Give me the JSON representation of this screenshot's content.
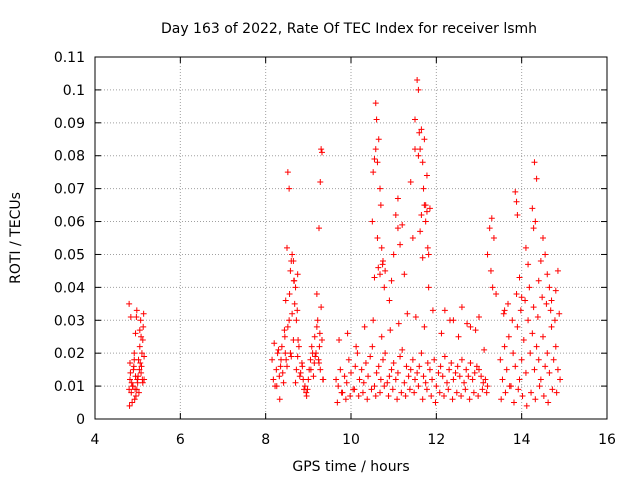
{
  "chart_data": {
    "type": "scatter",
    "title": "Day 163 of 2022, Rate Of TEC Index for receiver lsmh",
    "xlabel": "GPS time / hours",
    "ylabel": "ROTI / TECUs",
    "xlim": [
      4,
      16
    ],
    "ylim": [
      0,
      0.11
    ],
    "xticks": [
      "4",
      "6",
      "8",
      "10",
      "12",
      "14",
      "16"
    ],
    "yticks": [
      "0",
      "0.01",
      "0.02",
      "0.03",
      "0.04",
      "0.05",
      "0.06",
      "0.07",
      "0.08",
      "0.09",
      "0.1",
      "0.11"
    ],
    "grid": true,
    "marker": "+",
    "colors": {
      "points": "#ff0000",
      "grid": "#a0a0a0",
      "axes": "#000000"
    },
    "series": [
      {
        "x": [
          4.8,
          4.82,
          4.85,
          4.88,
          4.9,
          4.93,
          4.95,
          4.98,
          5.0,
          5.02,
          5.05,
          5.08,
          5.1,
          5.12,
          5.15,
          4.81,
          4.86,
          4.91,
          4.96,
          5.01,
          5.06,
          5.11,
          4.84,
          4.94,
          5.04,
          5.14,
          4.87,
          4.97,
          5.07,
          4.83,
          4.92,
          5.03,
          5.13,
          4.89,
          4.99,
          5.09,
          4.95,
          5.05,
          4.82,
          5.15,
          4.8,
          4.92,
          5.08,
          5.12,
          4.98,
          8.15,
          8.18,
          8.22,
          8.25,
          8.28,
          8.32,
          8.35,
          8.38,
          8.42,
          8.45,
          8.48,
          8.52,
          8.55,
          8.58,
          8.62,
          8.65,
          8.68,
          8.72,
          8.75,
          8.78,
          8.82,
          8.85,
          8.88,
          8.92,
          8.95,
          8.98,
          9.02,
          9.05,
          9.08,
          9.12,
          9.15,
          9.18,
          9.22,
          9.25,
          9.28,
          9.32,
          9.35,
          8.2,
          8.3,
          8.4,
          8.5,
          8.6,
          8.7,
          8.8,
          8.9,
          9.0,
          9.1,
          9.2,
          9.3,
          8.26,
          8.36,
          8.46,
          8.56,
          8.66,
          8.76,
          8.86,
          8.96,
          9.06,
          9.16,
          9.26,
          8.5,
          8.52,
          8.55,
          8.58,
          8.62,
          8.65,
          8.7,
          8.72,
          8.75,
          9.2,
          9.25,
          9.28,
          9.3,
          9.32,
          8.33,
          8.44,
          8.6,
          8.74,
          9.14,
          9.34,
          9.27,
          9.24,
          8.47,
          8.67,
          9.65,
          9.7,
          9.75,
          9.8,
          9.85,
          9.9,
          9.95,
          10.0,
          10.05,
          10.1,
          10.15,
          10.2,
          10.25,
          10.3,
          10.35,
          10.4,
          10.45,
          10.5,
          10.55,
          10.6,
          10.65,
          10.7,
          10.75,
          10.8,
          10.85,
          10.9,
          10.95,
          11.0,
          11.05,
          11.1,
          11.15,
          11.2,
          11.25,
          11.3,
          11.35,
          11.4,
          11.45,
          11.5,
          11.55,
          11.6,
          11.65,
          11.7,
          11.75,
          11.8,
          11.85,
          11.9,
          11.95,
          12.0,
          12.05,
          12.1,
          12.15,
          12.2,
          12.25,
          12.3,
          12.35,
          12.4,
          12.45,
          12.5,
          12.55,
          12.6,
          12.65,
          12.7,
          12.75,
          12.8,
          12.85,
          12.9,
          12.95,
          13.0,
          13.05,
          13.1,
          13.15,
          13.2,
          9.68,
          9.78,
          9.88,
          9.98,
          10.08,
          10.18,
          10.28,
          10.38,
          10.48,
          10.58,
          10.68,
          10.78,
          10.88,
          10.98,
          11.08,
          11.18,
          11.28,
          11.38,
          11.48,
          11.58,
          11.68,
          11.78,
          11.88,
          11.98,
          12.08,
          12.18,
          12.28,
          12.38,
          12.48,
          12.58,
          12.68,
          12.78,
          12.88,
          12.98,
          13.08,
          13.18,
          9.72,
          9.92,
          10.12,
          10.32,
          10.52,
          10.72,
          10.92,
          11.12,
          11.32,
          11.52,
          11.72,
          11.92,
          12.12,
          12.32,
          12.52,
          12.72,
          12.92,
          13.12,
          10.5,
          10.52,
          10.55,
          10.58,
          10.6,
          10.62,
          10.65,
          10.68,
          10.7,
          10.72,
          10.75,
          10.78,
          10.8,
          11.0,
          11.05,
          11.1,
          11.15,
          11.2,
          11.25,
          11.5,
          11.55,
          11.58,
          11.6,
          11.62,
          11.65,
          11.68,
          11.7,
          11.72,
          11.75,
          11.78,
          11.8,
          11.82,
          11.85,
          11.4,
          11.45,
          10.9,
          10.95,
          12.2,
          12.4,
          12.6,
          12.8,
          13.0,
          10.55,
          10.62,
          10.68,
          11.58,
          11.62,
          11.65,
          11.72,
          11.78,
          11.82,
          10.74,
          11.1,
          11.5,
          10.58,
          10.64,
          11.75,
          11.68,
          13.5,
          13.55,
          13.6,
          13.65,
          13.7,
          13.75,
          13.8,
          13.85,
          13.9,
          13.95,
          14.0,
          14.05,
          14.1,
          14.15,
          14.2,
          14.25,
          14.3,
          14.35,
          14.4,
          14.45,
          14.5,
          14.55,
          14.6,
          14.65,
          14.7,
          14.75,
          14.8,
          14.85,
          14.9,
          13.52,
          13.62,
          13.72,
          13.82,
          13.92,
          14.02,
          14.12,
          14.22,
          14.32,
          14.42,
          14.52,
          14.62,
          14.72,
          14.82,
          13.58,
          13.68,
          13.78,
          13.88,
          13.98,
          14.08,
          14.18,
          14.28,
          14.38,
          14.48,
          14.58,
          14.68,
          14.78,
          14.88,
          13.25,
          13.3,
          13.35,
          13.2,
          13.28,
          13.32,
          13.4,
          13.85,
          13.9,
          13.88,
          14.3,
          14.35,
          14.25,
          14.5,
          14.55,
          14.45,
          14.6,
          14.4,
          14.65,
          14.8,
          14.85,
          14.7,
          14.1,
          14.15,
          13.6,
          13.95,
          14.0,
          14.32,
          14.28
        ],
        "y": [
          0.035,
          0.012,
          0.008,
          0.01,
          0.015,
          0.006,
          0.013,
          0.009,
          0.011,
          0.018,
          0.022,
          0.014,
          0.02,
          0.024,
          0.019,
          0.004,
          0.011,
          0.016,
          0.007,
          0.013,
          0.017,
          0.012,
          0.031,
          0.009,
          0.015,
          0.032,
          0.005,
          0.031,
          0.03,
          0.014,
          0.018,
          0.008,
          0.028,
          0.01,
          0.012,
          0.016,
          0.026,
          0.027,
          0.017,
          0.012,
          0.009,
          0.02,
          0.025,
          0.011,
          0.033,
          0.018,
          0.012,
          0.01,
          0.015,
          0.02,
          0.013,
          0.016,
          0.022,
          0.011,
          0.025,
          0.018,
          0.028,
          0.03,
          0.02,
          0.032,
          0.024,
          0.035,
          0.015,
          0.019,
          0.022,
          0.014,
          0.017,
          0.012,
          0.01,
          0.008,
          0.009,
          0.015,
          0.018,
          0.022,
          0.013,
          0.025,
          0.02,
          0.03,
          0.017,
          0.015,
          0.024,
          0.012,
          0.023,
          0.021,
          0.014,
          0.016,
          0.019,
          0.011,
          0.013,
          0.009,
          0.012,
          0.02,
          0.028,
          0.034,
          0.01,
          0.018,
          0.02,
          0.038,
          0.042,
          0.024,
          0.016,
          0.007,
          0.015,
          0.019,
          0.022,
          0.052,
          0.075,
          0.07,
          0.045,
          0.05,
          0.048,
          0.04,
          0.03,
          0.044,
          0.038,
          0.058,
          0.072,
          0.082,
          0.081,
          0.006,
          0.027,
          0.048,
          0.033,
          0.017,
          0.012,
          0.026,
          0.018,
          0.036,
          0.042,
          0.012,
          0.01,
          0.015,
          0.008,
          0.013,
          0.011,
          0.018,
          0.014,
          0.009,
          0.016,
          0.02,
          0.012,
          0.015,
          0.011,
          0.017,
          0.013,
          0.019,
          0.022,
          0.01,
          0.014,
          0.016,
          0.012,
          0.018,
          0.02,
          0.011,
          0.013,
          0.015,
          0.017,
          0.012,
          0.014,
          0.019,
          0.021,
          0.011,
          0.016,
          0.013,
          0.015,
          0.018,
          0.012,
          0.014,
          0.016,
          0.02,
          0.013,
          0.011,
          0.017,
          0.015,
          0.012,
          0.018,
          0.01,
          0.014,
          0.016,
          0.013,
          0.019,
          0.011,
          0.015,
          0.017,
          0.012,
          0.014,
          0.016,
          0.013,
          0.018,
          0.011,
          0.015,
          0.013,
          0.017,
          0.012,
          0.014,
          0.016,
          0.015,
          0.013,
          0.011,
          0.012,
          0.01,
          0.005,
          0.008,
          0.006,
          0.007,
          0.009,
          0.007,
          0.008,
          0.006,
          0.009,
          0.007,
          0.008,
          0.01,
          0.007,
          0.009,
          0.006,
          0.008,
          0.007,
          0.009,
          0.008,
          0.01,
          0.006,
          0.009,
          0.007,
          0.005,
          0.008,
          0.007,
          0.009,
          0.006,
          0.008,
          0.007,
          0.009,
          0.006,
          0.008,
          0.007,
          0.009,
          0.008,
          0.024,
          0.026,
          0.022,
          0.028,
          0.03,
          0.025,
          0.027,
          0.029,
          0.032,
          0.031,
          0.028,
          0.033,
          0.026,
          0.03,
          0.025,
          0.029,
          0.027,
          0.021,
          0.06,
          0.075,
          0.079,
          0.096,
          0.091,
          0.078,
          0.085,
          0.07,
          0.065,
          0.052,
          0.048,
          0.04,
          0.045,
          0.05,
          0.062,
          0.067,
          0.053,
          0.059,
          0.044,
          0.091,
          0.103,
          0.1,
          0.087,
          0.082,
          0.088,
          0.078,
          0.07,
          0.065,
          0.06,
          0.074,
          0.052,
          0.05,
          0.064,
          0.072,
          0.055,
          0.036,
          0.042,
          0.033,
          0.03,
          0.034,
          0.028,
          0.031,
          0.043,
          0.055,
          0.044,
          0.08,
          0.057,
          0.062,
          0.085,
          0.063,
          0.04,
          0.047,
          0.058,
          0.082,
          0.082,
          0.046,
          0.065,
          0.049,
          0.018,
          0.012,
          0.022,
          0.015,
          0.025,
          0.01,
          0.02,
          0.016,
          0.028,
          0.012,
          0.018,
          0.024,
          0.014,
          0.03,
          0.02,
          0.026,
          0.015,
          0.022,
          0.018,
          0.012,
          0.025,
          0.016,
          0.02,
          0.014,
          0.028,
          0.018,
          0.022,
          0.015,
          0.012,
          0.006,
          0.008,
          0.01,
          0.005,
          0.009,
          0.007,
          0.004,
          0.008,
          0.006,
          0.01,
          0.007,
          0.005,
          0.009,
          0.008,
          0.032,
          0.035,
          0.03,
          0.038,
          0.033,
          0.036,
          0.04,
          0.034,
          0.031,
          0.037,
          0.035,
          0.033,
          0.03,
          0.032,
          0.058,
          0.061,
          0.055,
          0.05,
          0.045,
          0.04,
          0.038,
          0.069,
          0.062,
          0.066,
          0.078,
          0.073,
          0.064,
          0.055,
          0.05,
          0.048,
          0.044,
          0.042,
          0.04,
          0.039,
          0.045,
          0.036,
          0.052,
          0.047,
          0.033,
          0.043,
          0.037,
          0.06,
          0.058
        ]
      }
    ]
  }
}
